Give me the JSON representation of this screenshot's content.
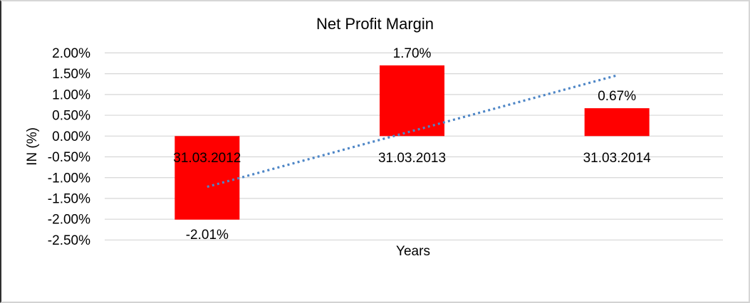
{
  "chart_data": {
    "type": "bar",
    "title": "Net Profit Margin",
    "xlabel": "Years",
    "ylabel": "IN (%)",
    "categories": [
      "31.03.2012",
      "31.03.2013",
      "31.03.2014"
    ],
    "values": [
      -2.01,
      1.7,
      0.67
    ],
    "value_labels": [
      "-2.01%",
      "1.70%",
      "0.67%"
    ],
    "bar_color": "#FF0000",
    "y_axis": {
      "ticks": [
        "2.00%",
        "1.50%",
        "1.00%",
        "0.50%",
        "0.00%",
        "-0.50%",
        "-1.00%",
        "-1.50%",
        "-2.00%",
        "-2.50%"
      ],
      "tick_values": [
        2.0,
        1.5,
        1.0,
        0.5,
        0.0,
        -0.5,
        -1.0,
        -1.5,
        -2.0,
        -2.5
      ],
      "min": -2.5,
      "max": 2.0,
      "step": 0.5
    },
    "grid": "horizontal",
    "gridline_color": "#D6D6D6",
    "legend": "none",
    "plot_bg": "#FFFFFF",
    "trendline": {
      "type": "linear",
      "style": "dotted",
      "color": "#4E86C6",
      "endpoints_pct": [
        -1.22,
        1.46
      ]
    }
  }
}
